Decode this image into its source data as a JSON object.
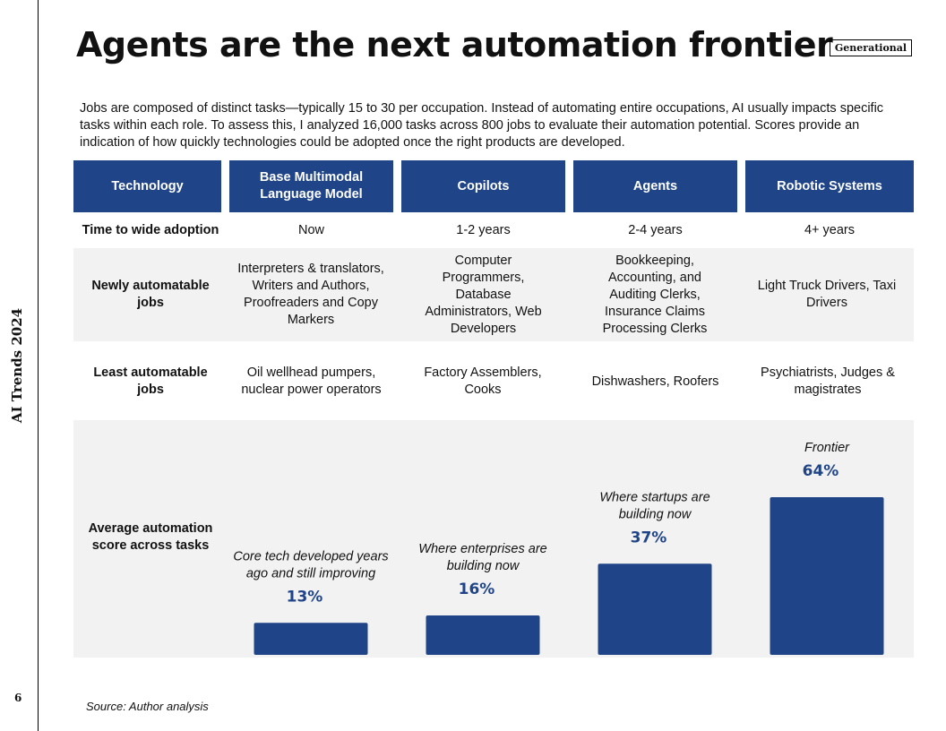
{
  "sidebar": {
    "label": "AI Trends 2024",
    "page_number": "6"
  },
  "header": {
    "title": "Agents are the next automation frontier",
    "badge": "Generational"
  },
  "intro": "Jobs are composed of distinct tasks—typically 15 to 30 per occupation. Instead of automating entire occupations, AI usually impacts specific tasks within each role. To assess this, I analyzed 16,000 tasks across 800 jobs to evaluate their automation potential. Scores provide an indication of how quickly technologies could be adopted once the right products are developed.",
  "table": {
    "headers": [
      "Technology",
      "Base Multimodal Language Model",
      "Copilots",
      "Agents",
      "Robotic Systems"
    ],
    "rows": [
      {
        "label": "Time to wide adoption",
        "cells": [
          "Now",
          "1-2 years",
          "2-4 years",
          "4+ years"
        ]
      },
      {
        "label": "Newly automatable jobs",
        "cells": [
          "Interpreters & translators, Writers and Authors, Proofreaders and Copy Markers",
          "Computer Programmers, Database Administrators, Web Developers",
          "Bookkeeping, Accounting, and Auditing Clerks, Insurance Claims Processing Clerks",
          "Light Truck Drivers, Taxi Drivers"
        ]
      },
      {
        "label": "Least automatable jobs",
        "cells": [
          "Oil wellhead pumpers, nuclear power operators",
          "Factory Assemblers, Cooks",
          "Dishwashers, Roofers",
          "Psychiatrists, Judges & magistrates"
        ]
      }
    ],
    "score_row_label": "Average automation score across tasks"
  },
  "chart_data": {
    "type": "bar",
    "categories": [
      "Base Multimodal Language Model",
      "Copilots",
      "Agents",
      "Robotic Systems"
    ],
    "values": [
      13,
      16,
      37,
      64
    ],
    "value_labels": [
      "13%",
      "16%",
      "37%",
      "64%"
    ],
    "annotations": [
      "Core tech developed years ago and still improving",
      "Where enterprises are building now",
      "Where  startups are building now",
      "Frontier"
    ],
    "ylim": [
      0,
      64
    ],
    "bar_color": "#1f4488",
    "grid": false
  },
  "source": "Source: Author analysis",
  "colors": {
    "header_bg": "#1f4488",
    "band_bg": "#f2f2f2",
    "bar": "#1f4488"
  }
}
